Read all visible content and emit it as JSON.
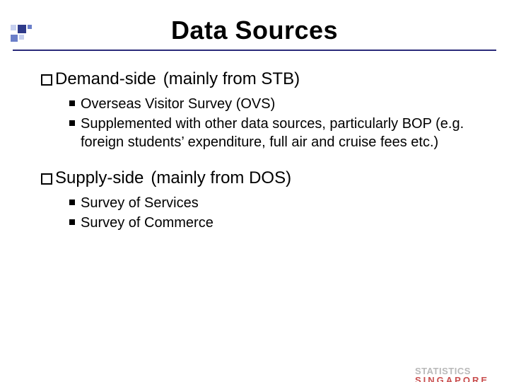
{
  "decor": {
    "colors": {
      "dark": "#2e3a8a",
      "mid": "#6b7fc9",
      "light": "#c5cfef"
    }
  },
  "title": {
    "text": "Data Sources",
    "fontsize": 36
  },
  "rule_color": "#2a2a7a",
  "section_fontsize": 24,
  "sub_fontsize": 20,
  "sections": [
    {
      "label": "Demand-side",
      "note": "(mainly from STB)",
      "items": [
        "Overseas Visitor Survey (OVS)",
        "Supplemented with other data sources, particularly BOP (e.g. foreign students’ expenditure, full air and cruise fees etc.)"
      ]
    },
    {
      "label": "Supply-side",
      "note": "(mainly from DOS)",
      "items": [
        "Survey of Services",
        "Survey of Commerce"
      ]
    }
  ],
  "logo": {
    "line1": "STATISTICS",
    "line2": "SINGAPORE",
    "color1": "#b9b9b9",
    "color2": "#c94f4f",
    "fontsize": 13
  }
}
